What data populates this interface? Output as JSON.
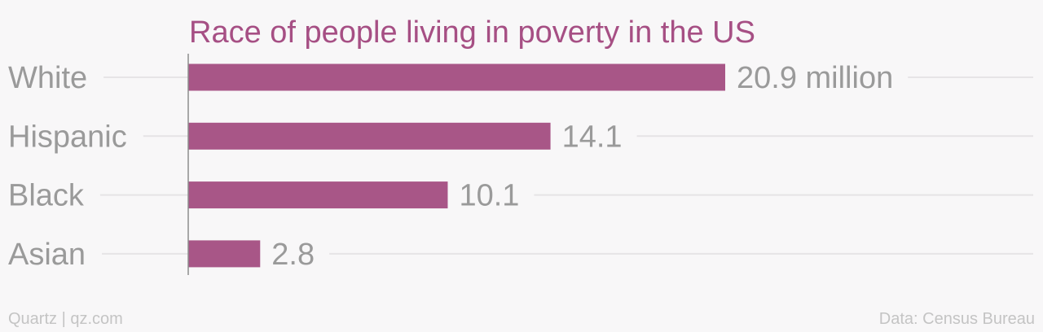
{
  "chart_data": {
    "type": "bar",
    "orientation": "horizontal",
    "title": "Race of people living in poverty in the US",
    "categories": [
      "White",
      "Hispanic",
      "Black",
      "Asian"
    ],
    "values": [
      20.9,
      14.1,
      10.1,
      2.8
    ],
    "value_labels": [
      "20.9 million",
      "14.1",
      "10.1",
      "2.8"
    ],
    "xlim": [
      0,
      20.9
    ],
    "grid": true,
    "legend": "none"
  },
  "footer": {
    "source_left": "Quartz | qz.com",
    "source_right": "Data: Census Bureau"
  },
  "colors": {
    "bar": "#a85687",
    "title": "#a64f84",
    "label": "#9a9a9a",
    "footer": "#c4c4c4",
    "background": "#f8f7f8"
  }
}
